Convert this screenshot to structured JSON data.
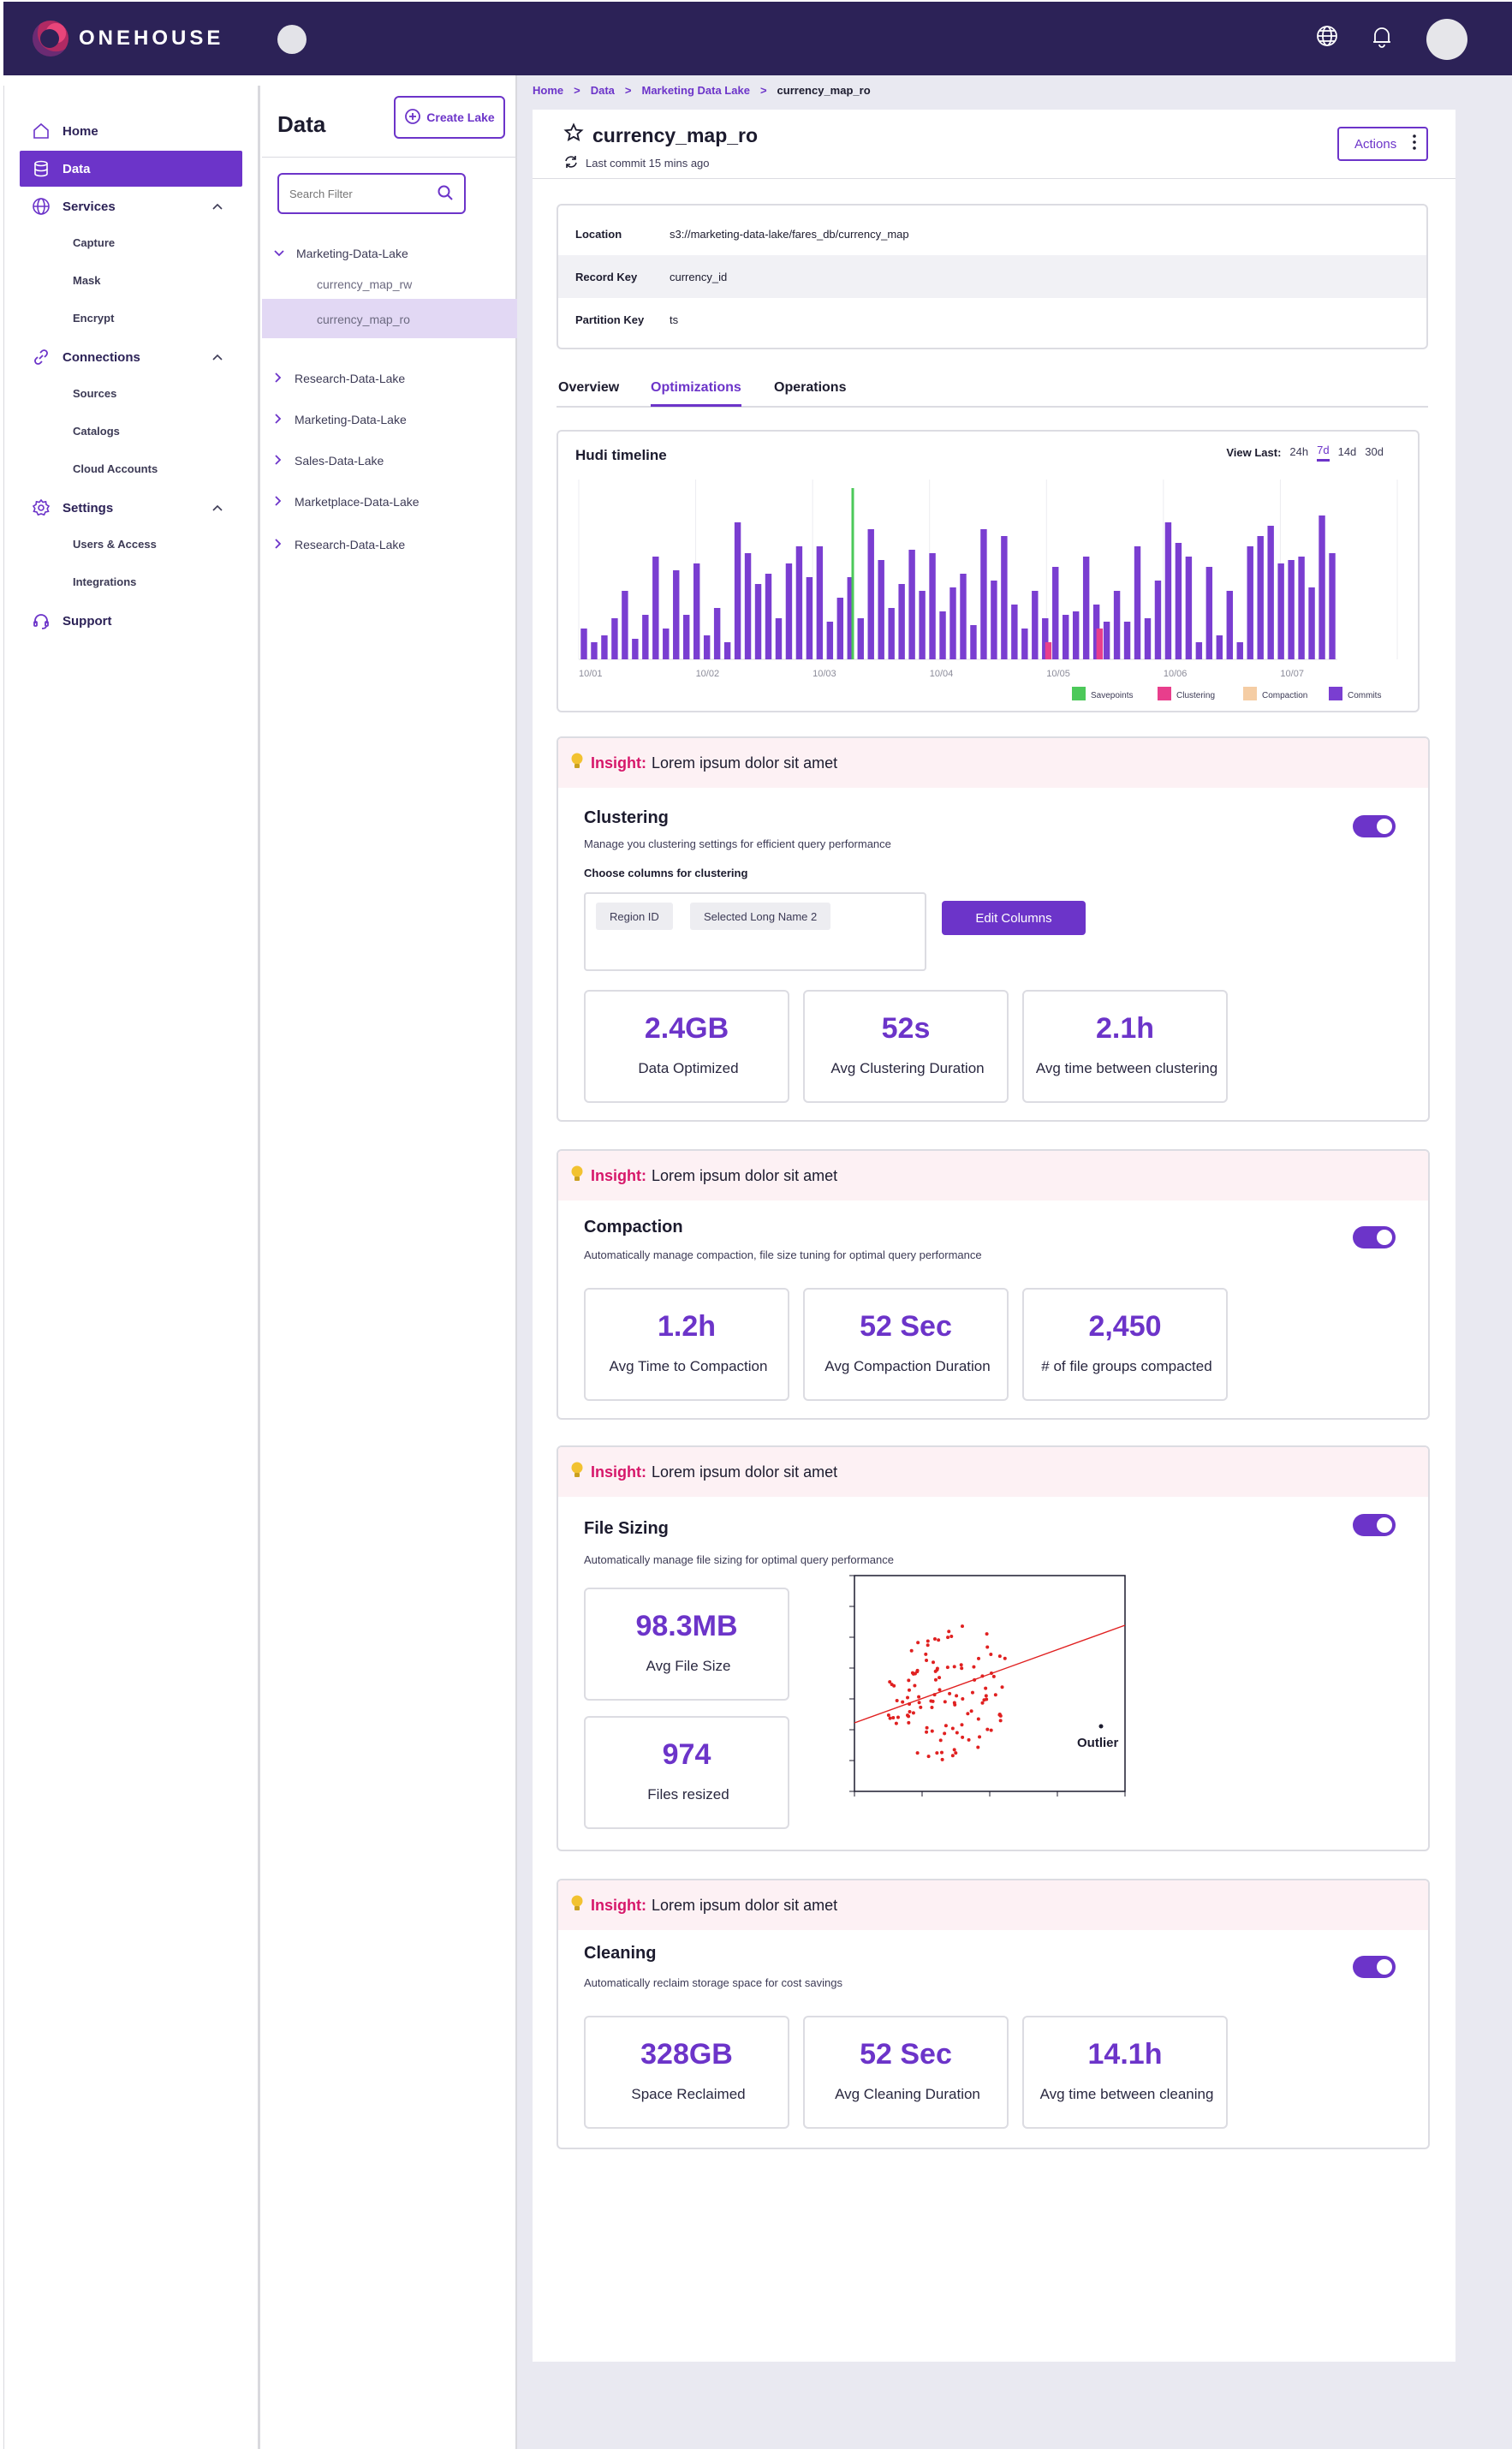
{
  "brand": {
    "name": "ONEHOUSE"
  },
  "nav": {
    "home": "Home",
    "data": "Data",
    "services": "Services",
    "services_items": [
      "Capture",
      "Mask",
      "Encrypt"
    ],
    "connections": "Connections",
    "connections_items": [
      "Sources",
      "Catalogs",
      "Cloud Accounts"
    ],
    "settings": "Settings",
    "settings_items": [
      "Users & Access",
      "Integrations"
    ],
    "support": "Support"
  },
  "tree": {
    "title": "Data",
    "create_lake": "Create Lake",
    "search_placeholder": "Search Filter",
    "expanded_lake": "Marketing-Data-Lake",
    "children": [
      "currency_map_rw",
      "currency_map_ro"
    ],
    "lakes": [
      "Research-Data-Lake",
      "Marketing-Data-Lake",
      "Sales-Data-Lake",
      "Marketplace-Data-Lake",
      "Research-Data-Lake"
    ]
  },
  "breadcrumb": [
    "Home",
    "Data",
    "Marketing Data Lake",
    "currency_map_ro"
  ],
  "table": {
    "title": "currency_map_ro",
    "last_commit": "Last commit 15 mins ago",
    "actions_label": "Actions",
    "properties": [
      {
        "key": "Location",
        "value": "s3://marketing-data-lake/fares_db/currency_map"
      },
      {
        "key": "Record Key",
        "value": "currency_id"
      },
      {
        "key": "Partition Key",
        "value": "ts"
      }
    ]
  },
  "tabs": [
    "Overview",
    "Optimizations",
    "Operations"
  ],
  "timeline": {
    "title": "Hudi timeline",
    "view_last_label": "View Last:",
    "view_options": [
      "24h",
      "7d",
      "14d",
      "30d"
    ],
    "active_option": "7d",
    "legend": [
      "Savepoints",
      "Clustering",
      "Compaction",
      "Commits"
    ]
  },
  "chart_data": [
    {
      "type": "bar",
      "title": "Hudi timeline",
      "x_ticks": [
        "10/01",
        "10/02",
        "10/03",
        "10/04",
        "10/05",
        "10/06",
        "10/07"
      ],
      "series": [
        {
          "name": "Commits",
          "color": "#7a3ed1",
          "values": [
            18,
            10,
            14,
            24,
            40,
            12,
            26,
            60,
            18,
            52,
            26,
            56,
            14,
            30,
            10,
            80,
            62,
            44,
            50,
            24,
            56,
            66,
            48,
            66,
            22,
            36,
            48,
            24,
            76,
            58,
            30,
            44,
            64,
            40,
            62,
            28,
            42,
            50,
            20,
            76,
            46,
            72,
            32,
            18,
            40,
            24,
            54,
            26,
            28,
            60,
            32,
            22,
            40,
            22,
            66,
            24,
            46,
            80,
            68,
            60,
            10,
            54,
            14,
            40,
            10,
            66,
            72,
            78,
            56,
            58,
            60,
            42,
            84,
            62
          ]
        },
        {
          "name": "Savepoints",
          "color": "#4cc95a",
          "values": [
            100
          ]
        },
        {
          "name": "Clustering",
          "color": "#e83e8c",
          "values": [
            10,
            18
          ]
        },
        {
          "name": "Compaction",
          "color": "#f5cda4",
          "values": []
        }
      ]
    },
    {
      "type": "scatter",
      "title": "",
      "series": [
        {
          "name": "Files",
          "color": "#e02020",
          "values": []
        }
      ],
      "annotations": [
        "Outlier"
      ]
    }
  ],
  "clustering": {
    "insight_label": "Insight:",
    "insight_text": "Lorem ipsum dolor sit amet",
    "title": "Clustering",
    "description": "Manage you clustering settings for efficient query performance",
    "columns_label": "Choose columns for clustering",
    "chips": [
      "Region ID",
      "Selected Long Name 2"
    ],
    "edit_columns": "Edit Columns",
    "stats": [
      {
        "value": "2.4GB",
        "label": "Data Optimized"
      },
      {
        "value": "52s",
        "label": "Avg Clustering Duration"
      },
      {
        "value": "2.1h",
        "label": "Avg time between clustering"
      }
    ]
  },
  "compaction": {
    "insight_label": "Insight:",
    "insight_text": "Lorem ipsum dolor sit amet",
    "title": "Compaction",
    "description": "Automatically manage compaction, file size tuning for optimal query performance",
    "stats": [
      {
        "value": "1.2h",
        "label": "Avg Time to Compaction"
      },
      {
        "value": "52 Sec",
        "label": "Avg Compaction Duration"
      },
      {
        "value": "2,450",
        "label": "# of file groups compacted"
      }
    ]
  },
  "file_sizing": {
    "insight_label": "Insight:",
    "insight_text": "Lorem ipsum dolor sit amet",
    "title": "File Sizing",
    "description": "Automatically manage file sizing for optimal query performance",
    "stats": [
      {
        "value": "98.3MB",
        "label": "Avg File Size"
      },
      {
        "value": "974",
        "label": "Files resized"
      }
    ],
    "outlier_label": "Outlier"
  },
  "cleaning": {
    "insight_label": "Insight:",
    "insight_text": "Lorem ipsum dolor sit amet",
    "title": "Cleaning",
    "description": "Automatically reclaim storage space for cost savings",
    "stats": [
      {
        "value": "328GB",
        "label": "Space Reclaimed"
      },
      {
        "value": "52 Sec",
        "label": "Avg Cleaning Duration"
      },
      {
        "value": "14.1h",
        "label": "Avg time between cleaning"
      }
    ]
  },
  "colors": {
    "brand": "#2c2257",
    "accent": "#6c34c9",
    "insight": "#d6176a",
    "insight_bg": "#fdf1f4"
  }
}
